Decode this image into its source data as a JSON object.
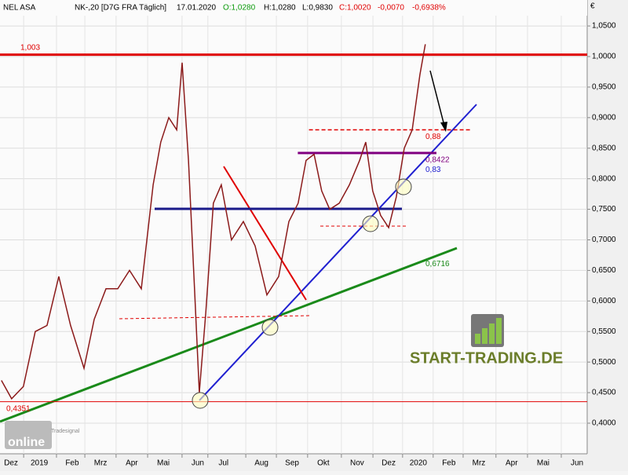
{
  "chart_data": {
    "type": "line",
    "header": {
      "symbol": "NEL ASA",
      "info": "NK-,20 [D7G FRA  Täglich]",
      "date": "17.01.2020",
      "open": "O:1,0280",
      "high": "H:1,0280",
      "low": "L:0,9830",
      "close": "C:1,0020",
      "change": "-0,0070",
      "change_pct": "-0,6938%"
    },
    "y_unit": "€",
    "logo": "START-TRADING.DE",
    "brand": "online",
    "brand_sub": "Tradesignal",
    "x": [
      -0.3,
      0.02,
      0.39,
      0.76,
      1.13,
      1.5,
      1.87,
      2.29,
      2.61,
      2.98,
      3.35,
      3.72,
      4.09,
      4.46,
      4.7,
      4.95,
      5.2,
      5.37,
      5.57,
      5.76,
      5.91,
      6.11,
      6.35,
      6.6,
      6.92,
      7.29,
      7.66,
      8.03,
      8.4,
      8.72,
      9.01,
      9.26,
      9.51,
      9.75,
      10.0,
      10.3,
      10.62,
      10.94,
      11.13,
      11.35,
      11.6,
      11.85,
      12.09,
      12.34,
      12.59,
      12.83,
      13.0
    ],
    "series": [
      {
        "name": "NEL ASA",
        "color": "#8b1a1a",
        "values": [
          0.47,
          0.44,
          0.46,
          0.55,
          0.56,
          0.64,
          0.56,
          0.49,
          0.57,
          0.62,
          0.62,
          0.65,
          0.62,
          0.79,
          0.86,
          0.9,
          0.88,
          0.99,
          0.83,
          0.62,
          0.45,
          0.58,
          0.76,
          0.79,
          0.7,
          0.73,
          0.69,
          0.61,
          0.64,
          0.73,
          0.76,
          0.83,
          0.84,
          0.78,
          0.75,
          0.76,
          0.79,
          0.83,
          0.86,
          0.78,
          0.74,
          0.72,
          0.77,
          0.85,
          0.88,
          0.97,
          1.02
        ]
      }
    ],
    "xlim": [
      -0.345,
      18.08
    ],
    "ylim": [
      0.3499,
      1.0925
    ],
    "xticks": [
      {
        "value": 0,
        "label": "Dez"
      },
      {
        "value": 0.89,
        "label": "2019"
      },
      {
        "value": 1.92,
        "label": "Feb"
      },
      {
        "value": 2.81,
        "label": "Mrz"
      },
      {
        "value": 3.79,
        "label": "Apr"
      },
      {
        "value": 4.78,
        "label": "Mai"
      },
      {
        "value": 5.86,
        "label": "Jun"
      },
      {
        "value": 6.67,
        "label": "Jul"
      },
      {
        "value": 7.86,
        "label": "Aug"
      },
      {
        "value": 8.82,
        "label": "Sep"
      },
      {
        "value": 9.8,
        "label": "Okt"
      },
      {
        "value": 10.86,
        "label": "Nov"
      },
      {
        "value": 11.85,
        "label": "Dez"
      },
      {
        "value": 12.78,
        "label": "2020"
      },
      {
        "value": 13.74,
        "label": "Feb"
      },
      {
        "value": 14.68,
        "label": "Mrz"
      },
      {
        "value": 15.71,
        "label": "Apr"
      },
      {
        "value": 16.7,
        "label": "Mai"
      },
      {
        "value": 17.76,
        "label": "Jun"
      }
    ],
    "yticks": [
      {
        "value": 0.4,
        "label": "0,4000"
      },
      {
        "value": 0.45,
        "label": "0,4500"
      },
      {
        "value": 0.5,
        "label": "0,5000"
      },
      {
        "value": 0.55,
        "label": "0,5500"
      },
      {
        "value": 0.6,
        "label": "0,6000"
      },
      {
        "value": 0.65,
        "label": "0,6500"
      },
      {
        "value": 0.7,
        "label": "0,7000"
      },
      {
        "value": 0.75,
        "label": "0,7500"
      },
      {
        "value": 0.8,
        "label": "0,8000"
      },
      {
        "value": 0.85,
        "label": "0,8500"
      },
      {
        "value": 0.9,
        "label": "0,9000"
      },
      {
        "value": 0.95,
        "label": "0,9500"
      },
      {
        "value": 1.0,
        "label": "1,0000"
      },
      {
        "value": 1.05,
        "label": "1,0500"
      }
    ],
    "grid": true,
    "levels": [
      {
        "label": "1,003",
        "value": 1.003,
        "color": "#e00000",
        "style": "solid"
      },
      {
        "label": "0,4351",
        "value": 0.4351,
        "color": "#e00000",
        "style": "thin"
      },
      {
        "label": "0,88",
        "value": 0.88,
        "color": "#e00000",
        "style": "dashed"
      },
      {
        "label": "0,8422",
        "value": 0.8422,
        "color": "#800080",
        "style": "solid"
      },
      {
        "label": "0,83",
        "value": 0.83,
        "color": "#2020d0",
        "style": "none"
      },
      {
        "label": "0,6716",
        "value": 0.6716,
        "color": "#1a8a1a",
        "style": "none"
      }
    ]
  }
}
